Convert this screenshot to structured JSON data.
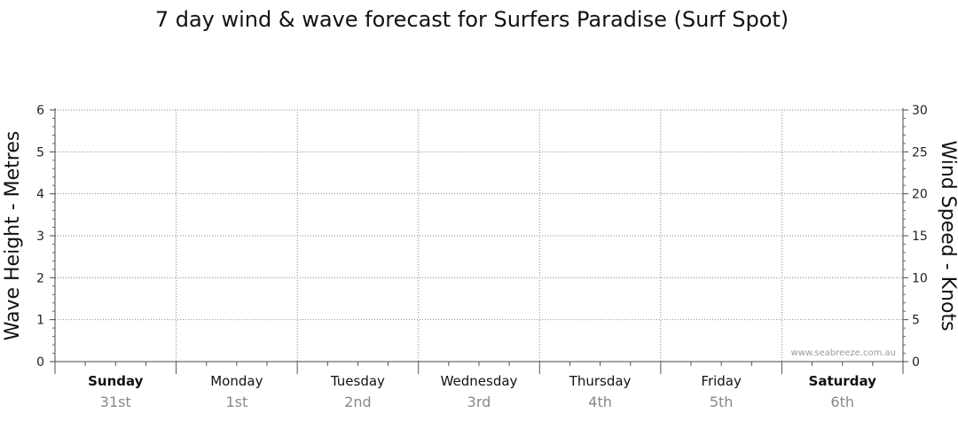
{
  "chart_data": {
    "type": "line",
    "title": "7 day wind & wave forecast for Surfers Paradise (Surf Spot)",
    "ylabel": "Wave Height - Metres",
    "y2label": "Wind Speed - Knots",
    "ylim": [
      0,
      6
    ],
    "y2lim": [
      0,
      30
    ],
    "yticks": [
      "0",
      "1",
      "2",
      "3",
      "4",
      "5",
      "6"
    ],
    "y2ticks": [
      "0",
      "5",
      "10",
      "15",
      "20",
      "25",
      "30"
    ],
    "days": [
      {
        "name": "Sunday",
        "date": "31st",
        "bold": true
      },
      {
        "name": "Monday",
        "date": "1st",
        "bold": false
      },
      {
        "name": "Tuesday",
        "date": "2nd",
        "bold": false
      },
      {
        "name": "Wednesday",
        "date": "3rd",
        "bold": false
      },
      {
        "name": "Thursday",
        "date": "4th",
        "bold": false
      },
      {
        "name": "Friday",
        "date": "5th",
        "bold": false
      },
      {
        "name": "Saturday",
        "date": "6th",
        "bold": true
      }
    ],
    "grid": true,
    "series": [],
    "watermark": "www.seabreeze.com.au"
  }
}
